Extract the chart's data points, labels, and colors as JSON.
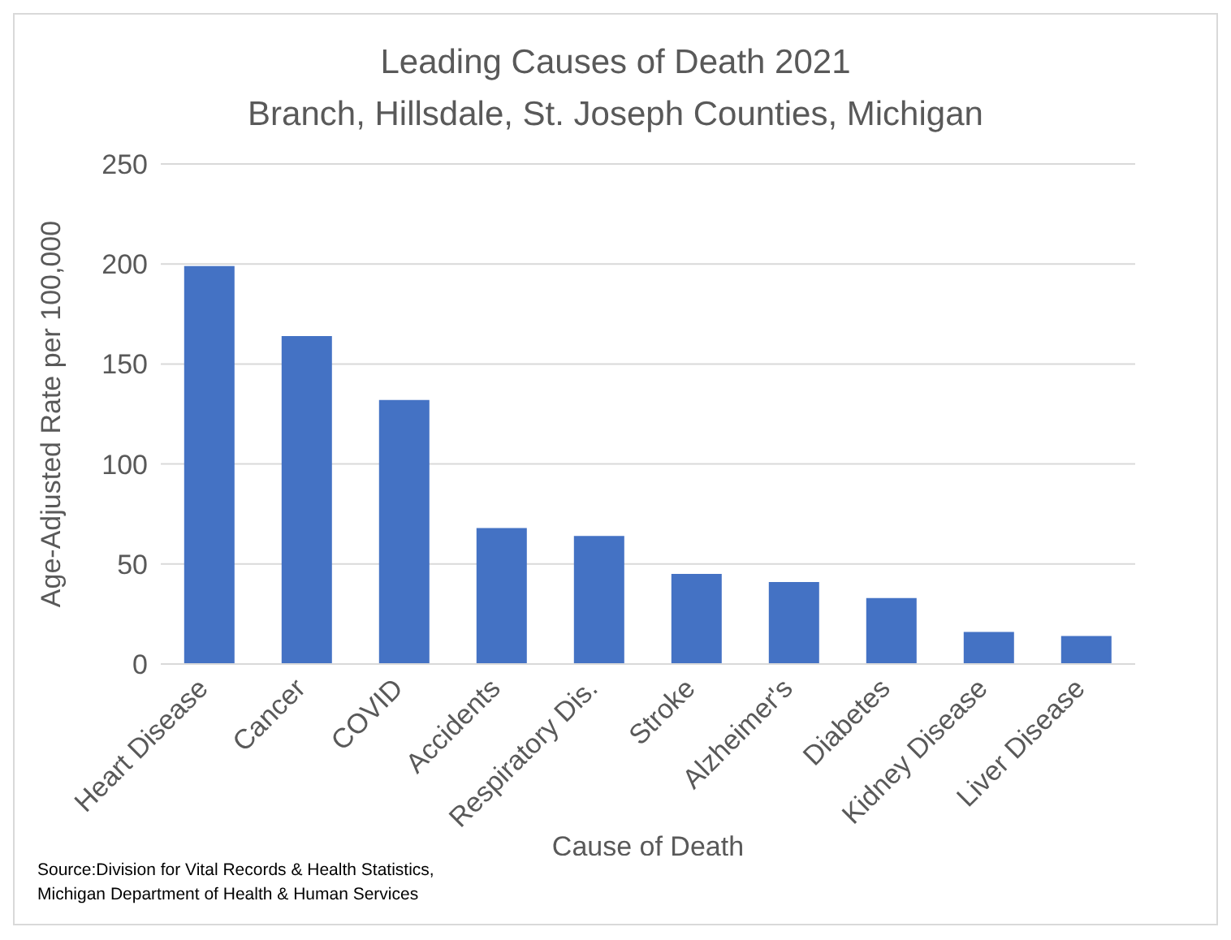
{
  "chart_data": {
    "type": "bar",
    "title": "Leading Causes of Death 2021",
    "subtitle": "Branch, Hillsdale, St. Joseph Counties, Michigan",
    "xlabel": "Cause of Death",
    "ylabel": "Age-Adjusted Rate per 100,000",
    "categories": [
      "Heart Disease",
      "Cancer",
      "COVID",
      "Accidents",
      "Respiratory Dis.",
      "Stroke",
      "Alzheimer's",
      "Diabetes",
      "Kidney Disease",
      "Liver Disease"
    ],
    "values": [
      199,
      164,
      132,
      68,
      64,
      45,
      41,
      33,
      16,
      14
    ],
    "color": "#4472c4",
    "ylim": [
      0,
      250
    ],
    "yticks": [
      0,
      50,
      100,
      150,
      200,
      250
    ],
    "grid": "y",
    "annotations": [
      "Source:Division for Vital Records & Health Statistics,",
      "Michigan Department of Health & Human Services"
    ]
  }
}
